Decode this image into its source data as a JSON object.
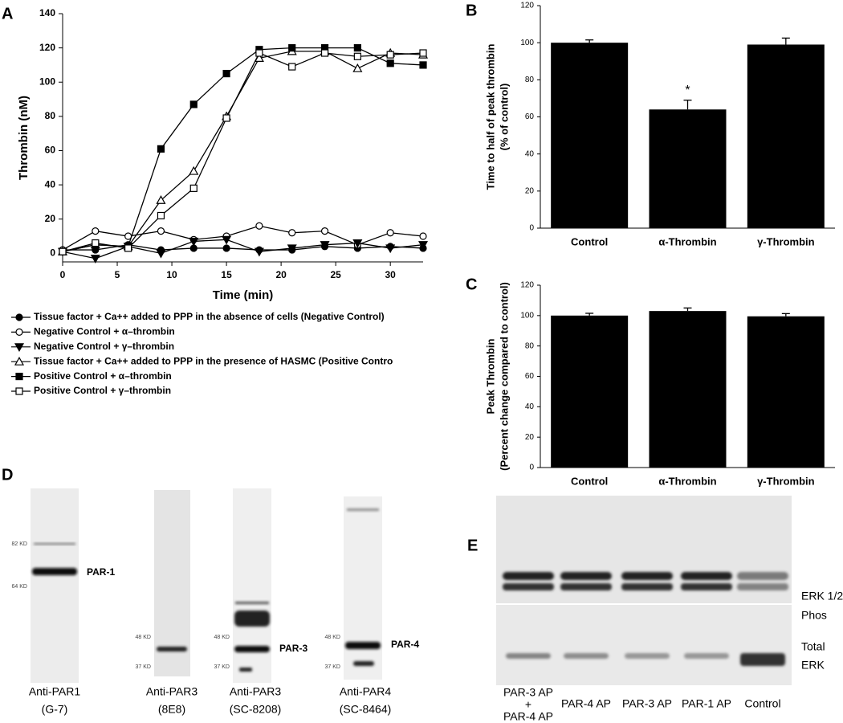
{
  "chart_data": [
    {
      "type": "line",
      "label": "A",
      "xlabel": "Time (min)",
      "ylabel": "Thrombin (nM)",
      "x": [
        0,
        3,
        6,
        9,
        12,
        15,
        18,
        21,
        24,
        27,
        30,
        33
      ],
      "xlim": [
        0,
        33
      ],
      "xticks": [
        0,
        5,
        10,
        15,
        20,
        25,
        30
      ],
      "ylim": [
        -5,
        140
      ],
      "yticks": [
        0,
        20,
        40,
        60,
        80,
        100,
        120,
        140
      ],
      "series": [
        {
          "name": "Tissue factor + Ca++ added to PPP in the absence of cells (Negative Control)",
          "marker": "circle-filled",
          "color": "#000000",
          "values": [
            2,
            2,
            5,
            2,
            3,
            3,
            2,
            2,
            4,
            3,
            4,
            3
          ]
        },
        {
          "name": "Negative Control + α–thrombin",
          "marker": "circle-open",
          "color": "#000000",
          "values": [
            2,
            13,
            10,
            13,
            8,
            10,
            16,
            12,
            13,
            5,
            12,
            10
          ]
        },
        {
          "name": "Negative Control + γ–thrombin",
          "marker": "triangle-down-filled",
          "color": "#000000",
          "values": [
            1,
            -3,
            4,
            0,
            7,
            8,
            1,
            3,
            5,
            6,
            3,
            5
          ]
        },
        {
          "name": "Tissue factor + Ca++ added to PPP in the presence of HASMC (Positive Contro",
          "marker": "triangle-up-open",
          "color": "#000000",
          "values": [
            1,
            5,
            4,
            31,
            48,
            80,
            114,
            118,
            118,
            108,
            117,
            116
          ]
        },
        {
          "name": "Positive Control + α–thrombin",
          "marker": "square-filled",
          "color": "#000000",
          "values": [
            1,
            5,
            4,
            61,
            87,
            105,
            119,
            120,
            120,
            120,
            111,
            110
          ]
        },
        {
          "name": "Positive Control + γ–thrombin",
          "marker": "square-open",
          "color": "#000000",
          "values": [
            1,
            6,
            3,
            22,
            38,
            79,
            117,
            109,
            117,
            115,
            116,
            117
          ]
        }
      ]
    },
    {
      "type": "bar",
      "label": "B",
      "ylabel": [
        "Time to half of peak thrombin",
        "(% of control)"
      ],
      "categories": [
        "Control",
        "α-Thrombin",
        "γ-Thrombin"
      ],
      "values": [
        100,
        64,
        99
      ],
      "errors": [
        1.5,
        5,
        3.5
      ],
      "color": "#000000",
      "ylim": [
        0,
        120
      ],
      "yticks": [
        0,
        20,
        40,
        60,
        80,
        100,
        120
      ],
      "annotation": {
        "text": "*",
        "category": "α-Thrombin"
      }
    },
    {
      "type": "bar",
      "label": "C",
      "ylabel": [
        "Peak Thrombin",
        "(Percent change compared to control)"
      ],
      "categories": [
        "Control",
        "α-Thrombin",
        "γ-Thrombin"
      ],
      "values": [
        100,
        103,
        99.5
      ],
      "errors": [
        1.5,
        2,
        1.8
      ],
      "color": "#000000",
      "ylim": [
        0,
        120
      ],
      "yticks": [
        0,
        20,
        40,
        60,
        80,
        100,
        120
      ]
    }
  ],
  "panel_d": {
    "label": "D",
    "blots": [
      {
        "markers": [
          "82 KD",
          "64 KD"
        ],
        "band_label": "PAR-1",
        "caption": [
          "Anti-PAR1",
          "(G-7)"
        ]
      },
      {
        "markers": [
          "48 KD",
          "37 KD"
        ],
        "caption": [
          "Anti-PAR3",
          "(8E8)"
        ]
      },
      {
        "markers": [
          "48 KD",
          "37 KD"
        ],
        "band_label": "PAR-3",
        "caption": [
          "Anti-PAR3",
          "(SC-8208)"
        ]
      },
      {
        "markers": [
          "48 KD",
          "37 KD"
        ],
        "band_label": "PAR-4",
        "caption": [
          "Anti-PAR4",
          "(SC-8464)"
        ]
      }
    ]
  },
  "panel_e": {
    "label": "E",
    "row_labels": [
      [
        "ERK 1/2",
        "Phos"
      ],
      [
        "Total",
        "ERK"
      ]
    ],
    "lanes": [
      [
        "PAR-3 AP",
        "+",
        "PAR-4 AP"
      ],
      [
        "PAR-4 AP"
      ],
      [
        "PAR-3 AP"
      ],
      [
        "PAR-1 AP"
      ],
      [
        "Control"
      ]
    ]
  }
}
